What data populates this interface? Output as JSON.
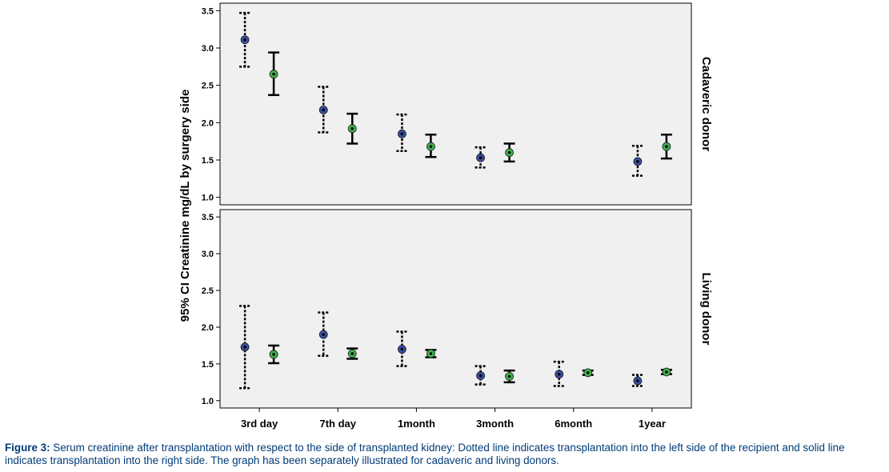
{
  "chart_data": {
    "type": "scatter",
    "subtype": "error-bar",
    "ylabel": "95% CI Creatinine mg/dL by surgery side",
    "categories": [
      "3rd day",
      "7th day",
      "1month",
      "3month",
      "6month",
      "1year"
    ],
    "ylim": [
      0.9,
      3.6
    ],
    "yticks": [
      "1.0",
      "1.5",
      "2.0",
      "2.5",
      "3.0",
      "3.5"
    ],
    "grid": false,
    "legend": "none",
    "background_color": "#f0f0f0",
    "series_styles": [
      {
        "side": "left",
        "line": "dotted",
        "marker_color": "#3a4fa0"
      },
      {
        "side": "right",
        "line": "solid",
        "marker_color": "#3fb34f"
      }
    ],
    "panels": [
      {
        "label": "Cadaveric donor",
        "series": [
          {
            "values": [
              {
                "mean": 3.11,
                "low": 2.75,
                "high": 3.47
              },
              {
                "mean": 2.17,
                "low": 1.87,
                "high": 2.48
              },
              {
                "mean": 1.85,
                "low": 1.62,
                "high": 2.11
              },
              {
                "mean": 1.53,
                "low": 1.4,
                "high": 1.67
              },
              null,
              {
                "mean": 1.48,
                "low": 1.29,
                "high": 1.69
              }
            ]
          },
          {
            "values": [
              {
                "mean": 2.65,
                "low": 2.37,
                "high": 2.94
              },
              {
                "mean": 1.92,
                "low": 1.72,
                "high": 2.12
              },
              {
                "mean": 1.68,
                "low": 1.54,
                "high": 1.84
              },
              {
                "mean": 1.6,
                "low": 1.48,
                "high": 1.72
              },
              null,
              {
                "mean": 1.68,
                "low": 1.52,
                "high": 1.84
              }
            ]
          }
        ]
      },
      {
        "label": "Living donor",
        "series": [
          {
            "values": [
              {
                "mean": 1.73,
                "low": 1.17,
                "high": 2.29
              },
              {
                "mean": 1.9,
                "low": 1.61,
                "high": 2.2
              },
              {
                "mean": 1.7,
                "low": 1.47,
                "high": 1.94
              },
              {
                "mean": 1.34,
                "low": 1.22,
                "high": 1.47
              },
              {
                "mean": 1.36,
                "low": 1.2,
                "high": 1.53
              },
              {
                "mean": 1.27,
                "low": 1.2,
                "high": 1.35
              }
            ]
          },
          {
            "values": [
              {
                "mean": 1.63,
                "low": 1.51,
                "high": 1.75
              },
              {
                "mean": 1.64,
                "low": 1.57,
                "high": 1.71
              },
              {
                "mean": 1.64,
                "low": 1.59,
                "high": 1.69
              },
              {
                "mean": 1.33,
                "low": 1.25,
                "high": 1.41
              },
              {
                "mean": 1.38,
                "low": 1.35,
                "high": 1.41
              },
              {
                "mean": 1.39,
                "low": 1.36,
                "high": 1.42
              }
            ]
          }
        ]
      }
    ]
  },
  "caption": {
    "label": "Figure 3:",
    "text": "Serum creatinine after transplantation with respect to the side of transplanted kidney: Dotted line indicates transplantation into the left side of the recipient and solid line indicates transplantation into the right side. The graph has been separately illustrated for cadaveric and living donors."
  }
}
